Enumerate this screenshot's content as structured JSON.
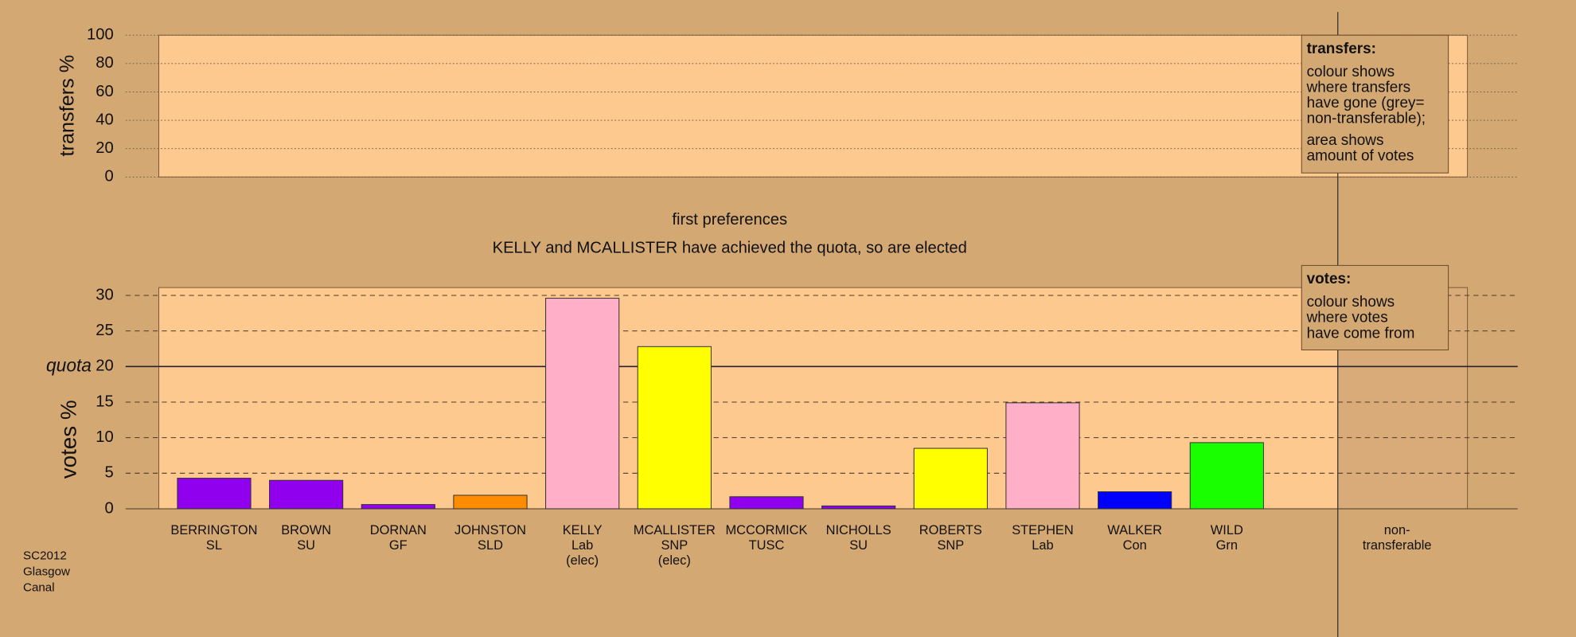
{
  "chart_data": [
    {
      "type": "transfers",
      "ylabel": "transfers %",
      "ylim": [
        0,
        100
      ],
      "yticks": [
        0,
        20,
        40,
        60,
        80,
        100
      ],
      "legend": {
        "heading": "transfers:",
        "paragraphs": [
          [
            "colour shows",
            "where transfers",
            "have gone (grey=",
            "non-transferable);"
          ],
          [
            "area shows",
            "amount of votes"
          ]
        ]
      }
    },
    {
      "type": "bar",
      "title": "first preferences",
      "subtitle": "KELLY and MCALLISTER have achieved the quota, so are elected",
      "ylabel": "votes %",
      "ylim": [
        0,
        31.1
      ],
      "yticks": [
        0,
        5,
        10,
        15,
        20,
        25,
        30
      ],
      "quota_label": "quota",
      "quota": 20,
      "categories": [
        [
          "BERRINGTON",
          "SL"
        ],
        [
          "BROWN",
          "SU"
        ],
        [
          "DORNAN",
          "GF"
        ],
        [
          "JOHNSTON",
          "SLD"
        ],
        [
          "KELLY",
          "Lab",
          "(elec)"
        ],
        [
          "MCALLISTER",
          "SNP",
          "(elec)"
        ],
        [
          "MCCORMICK",
          "TUSC"
        ],
        [
          "NICHOLLS",
          "SU"
        ],
        [
          "ROBERTS",
          "SNP"
        ],
        [
          "STEPHEN",
          "Lab"
        ],
        [
          "WALKER",
          "Con"
        ],
        [
          "WILD",
          "Grn"
        ]
      ],
      "values": [
        4.3,
        4.0,
        0.6,
        1.9,
        29.6,
        22.8,
        1.7,
        0.4,
        8.5,
        14.9,
        2.4,
        9.3
      ],
      "colors": [
        "#9000ee",
        "#9000ee",
        "#9000ee",
        "#ff8c00",
        "#ffb0c8",
        "#ffff00",
        "#9000ee",
        "#9000ee",
        "#ffff00",
        "#ffb0c8",
        "#0000ff",
        "#1aff00"
      ],
      "extra_column_label": [
        "non-",
        "transferable"
      ],
      "legend": {
        "heading": "votes:",
        "paragraphs": [
          [
            "colour shows",
            "where votes",
            "have come from"
          ]
        ]
      }
    }
  ],
  "footer": [
    "SC2012",
    "Glasgow",
    "Canal"
  ]
}
